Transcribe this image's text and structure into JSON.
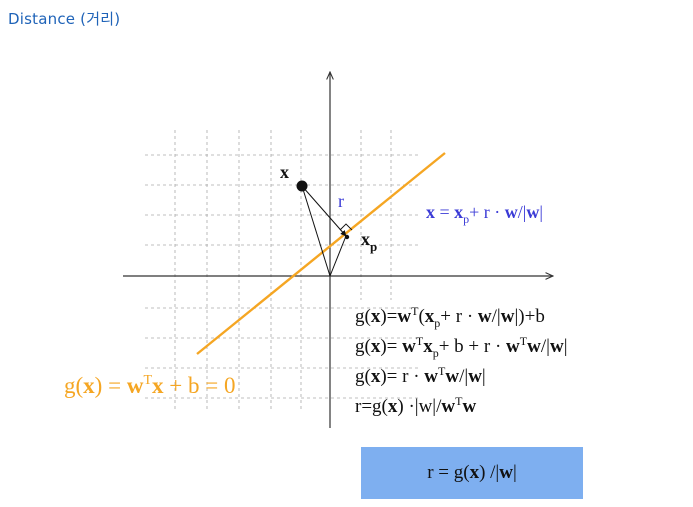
{
  "title": "Distance (거리)",
  "colors": {
    "title": "#1f63b8",
    "line": "#f5a623",
    "accent_blue": "#3a3ad6",
    "box": "#7eaff0"
  },
  "labels": {
    "point_x": "x",
    "point_xp": "x",
    "point_xp_sub": "p",
    "distance_r": "r"
  },
  "equations": {
    "projection": "x = xp+ r · w/|w|",
    "hyperplane": "g(x) = wTx + b = 0",
    "derivation": [
      "g(x)=wT(xp+ r · w/|w|)+b",
      "g(x)= wTxp+ b + r · wTw/|w|",
      "g(x)= r · wTw/|w|",
      "r=g(x) ·|w|/wTw"
    ],
    "result": "r = g(x) /|w|"
  }
}
